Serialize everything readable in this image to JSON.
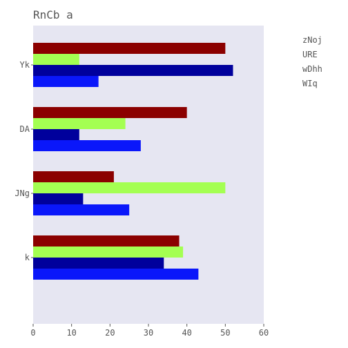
{
  "chart_data": {
    "type": "bar",
    "orientation": "horizontal",
    "title": "RnCb a",
    "xlabel": "",
    "ylabel": "",
    "categories": [
      "Yk",
      "DA",
      "JNg",
      "k"
    ],
    "series": [
      {
        "name": "zNoj",
        "color": "#8b0000",
        "values": [
          50,
          40,
          21,
          38
        ]
      },
      {
        "name": "URE",
        "color": "#a4ff52",
        "values": [
          12,
          24,
          50,
          39
        ]
      },
      {
        "name": "wDhh",
        "color": "#00009c",
        "values": [
          52,
          12,
          13,
          34
        ]
      },
      {
        "name": "WIq",
        "color": "#0a17fa",
        "values": [
          17,
          28,
          25,
          43
        ]
      }
    ],
    "xlim": [
      0,
      60
    ],
    "xticks": [
      "0",
      "10",
      "20",
      "30",
      "40",
      "50",
      "60"
    ],
    "legend_position": "right",
    "grid": false,
    "background": "#e6e6f2"
  }
}
